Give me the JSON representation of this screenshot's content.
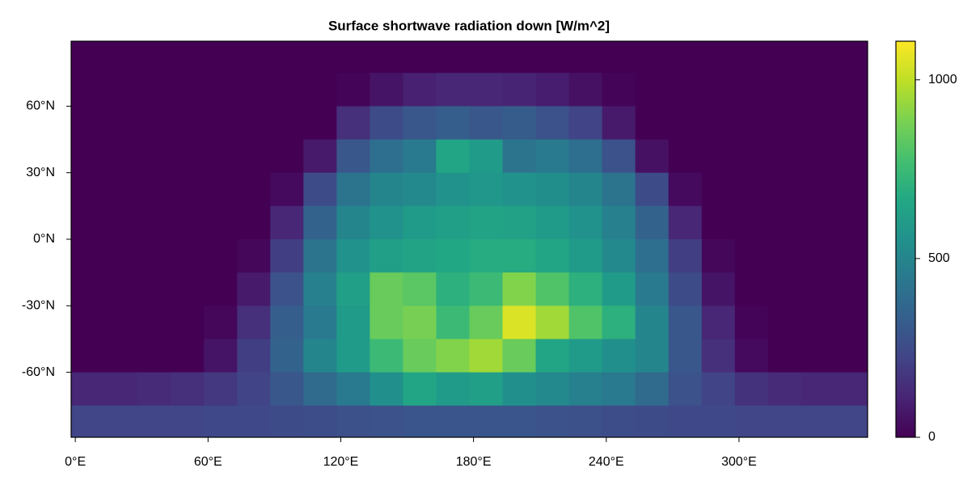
{
  "chart_data": {
    "type": "heatmap",
    "title": "Surface shortwave radiation down [W/m^2]",
    "colormap": "viridis",
    "x": [
      5.625,
      20.625,
      35.625,
      50.625,
      65.625,
      80.625,
      95.625,
      110.625,
      125.625,
      140.625,
      155.625,
      170.625,
      185.625,
      200.625,
      215.625,
      230.625,
      245.625,
      260.625,
      275.625,
      290.625,
      305.625,
      320.625,
      335.625,
      350.625
    ],
    "y": [
      82.5,
      67.5,
      52.5,
      37.5,
      22.5,
      7.5,
      -7.5,
      -22.5,
      -37.5,
      -52.5,
      -67.5,
      -82.5
    ],
    "z": [
      [
        0,
        0,
        0,
        0,
        0,
        0,
        0,
        0,
        0,
        0,
        0,
        0,
        0,
        0,
        0,
        0,
        0,
        0,
        0,
        0,
        0,
        0,
        0,
        0
      ],
      [
        0,
        0,
        0,
        0,
        0,
        0,
        0,
        0,
        10,
        60,
        100,
        120,
        120,
        110,
        90,
        50,
        10,
        0,
        0,
        0,
        0,
        0,
        0,
        0
      ],
      [
        0,
        0,
        0,
        0,
        0,
        0,
        0,
        0,
        150,
        250,
        300,
        330,
        300,
        320,
        280,
        220,
        80,
        0,
        0,
        0,
        0,
        0,
        0,
        0
      ],
      [
        0,
        0,
        0,
        0,
        0,
        0,
        0,
        80,
        300,
        400,
        450,
        650,
        600,
        420,
        450,
        400,
        280,
        50,
        0,
        0,
        0,
        0,
        0,
        0
      ],
      [
        0,
        0,
        0,
        0,
        0,
        0,
        30,
        250,
        420,
        500,
        520,
        560,
        580,
        560,
        540,
        500,
        420,
        250,
        30,
        0,
        0,
        0,
        0,
        0
      ],
      [
        0,
        0,
        0,
        0,
        0,
        0,
        120,
        350,
        500,
        560,
        600,
        620,
        640,
        630,
        600,
        560,
        480,
        350,
        120,
        0,
        0,
        0,
        0,
        0
      ],
      [
        0,
        0,
        0,
        0,
        0,
        20,
        200,
        420,
        560,
        620,
        640,
        660,
        680,
        680,
        650,
        600,
        520,
        400,
        200,
        20,
        0,
        0,
        0,
        0
      ],
      [
        0,
        0,
        0,
        0,
        0,
        80,
        280,
        480,
        620,
        850,
        820,
        700,
        750,
        900,
        800,
        700,
        600,
        450,
        250,
        60,
        0,
        0,
        0,
        0
      ],
      [
        0,
        0,
        0,
        0,
        20,
        150,
        330,
        450,
        600,
        850,
        880,
        750,
        850,
        1050,
        950,
        800,
        700,
        500,
        300,
        120,
        10,
        0,
        0,
        0
      ],
      [
        0,
        0,
        0,
        0,
        60,
        200,
        350,
        500,
        600,
        750,
        850,
        900,
        950,
        850,
        650,
        600,
        550,
        500,
        300,
        150,
        30,
        0,
        0,
        0
      ],
      [
        120,
        120,
        130,
        150,
        180,
        220,
        300,
        380,
        450,
        550,
        650,
        600,
        620,
        550,
        520,
        480,
        450,
        380,
        280,
        220,
        160,
        130,
        120,
        120
      ],
      [
        230,
        230,
        230,
        230,
        240,
        240,
        250,
        260,
        270,
        280,
        290,
        290,
        290,
        290,
        280,
        270,
        260,
        250,
        240,
        240,
        230,
        230,
        230,
        230
      ]
    ],
    "xlim": [
      -1.875,
      358.125
    ],
    "ylim": [
      -89.3,
      89.3
    ],
    "clim": [
      0,
      1108
    ],
    "xticks": [
      {
        "value": 0,
        "label": "0°E"
      },
      {
        "value": 60,
        "label": "60°E"
      },
      {
        "value": 120,
        "label": "120°E"
      },
      {
        "value": 180,
        "label": "180°E"
      },
      {
        "value": 240,
        "label": "240°E"
      },
      {
        "value": 300,
        "label": "300°E"
      }
    ],
    "yticks": [
      {
        "value": -60,
        "label": "-60°N"
      },
      {
        "value": -30,
        "label": "-30°N"
      },
      {
        "value": 0,
        "label": "0°N"
      },
      {
        "value": 30,
        "label": "30°N"
      },
      {
        "value": 60,
        "label": "60°N"
      }
    ],
    "cticks": [
      0,
      500,
      1000
    ]
  }
}
